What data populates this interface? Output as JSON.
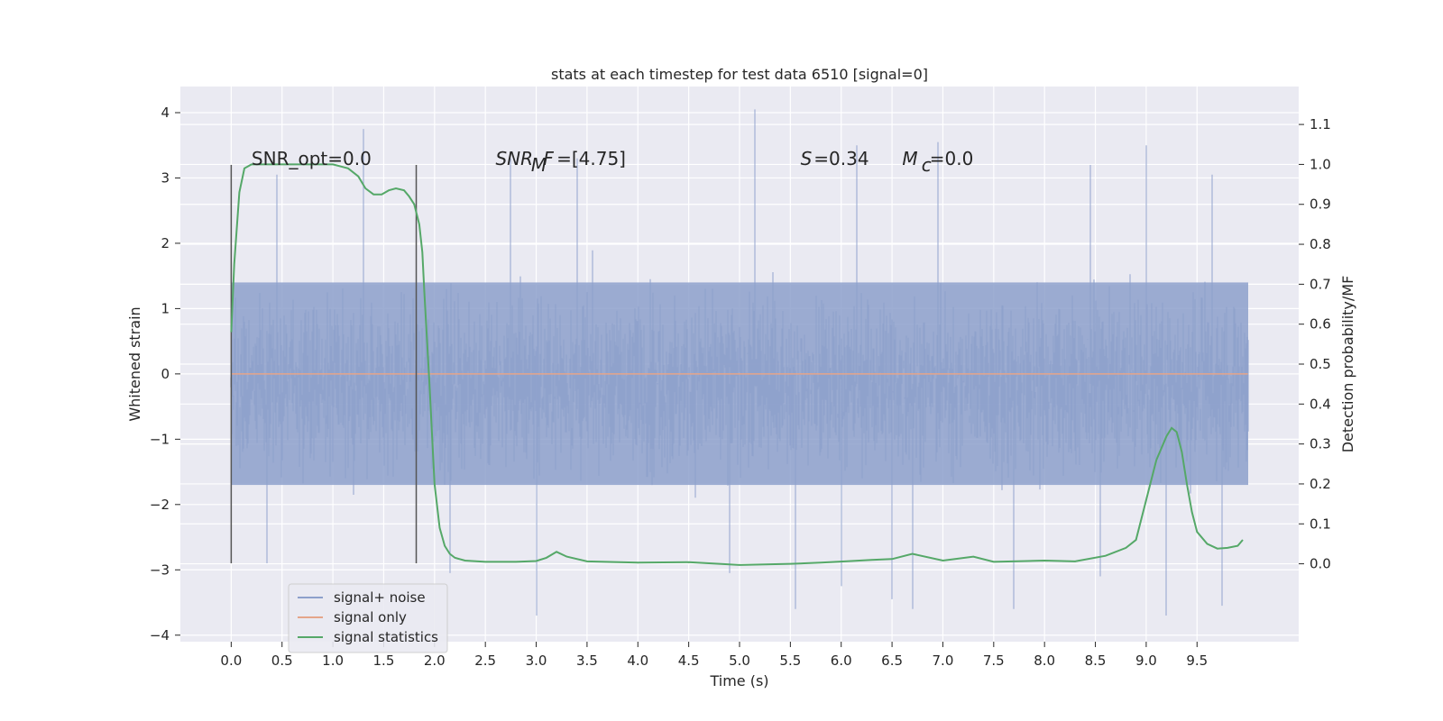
{
  "chart_data": {
    "type": "line",
    "title": "stats at each timestep for test data 6510 [signal=0]",
    "xlabel": "Time (s)",
    "ylabel": "Whitened strain",
    "y2label": "Detection probability/MF",
    "xlim": [
      -0.5,
      10.5
    ],
    "ylim": [
      -4.1,
      4.4
    ],
    "y2lim": [
      -0.195,
      1.195
    ],
    "x_ticks": [
      0.0,
      0.5,
      1.0,
      1.5,
      2.0,
      2.5,
      3.0,
      3.5,
      4.0,
      4.5,
      5.0,
      5.5,
      6.0,
      6.5,
      7.0,
      7.5,
      8.0,
      8.5,
      9.0,
      9.5
    ],
    "x_tick_labels": [
      "0.0",
      "0.5",
      "1.0",
      "1.5",
      "2.0",
      "2.5",
      "3.0",
      "3.5",
      "4.0",
      "4.5",
      "5.0",
      "5.5",
      "6.0",
      "6.5",
      "7.0",
      "7.5",
      "8.0",
      "8.5",
      "9.0",
      "9.5"
    ],
    "y_ticks": [
      4,
      3,
      2,
      1,
      0,
      -1,
      -2,
      -3,
      -4
    ],
    "y_tick_labels": [
      "4",
      "3",
      "2",
      "1",
      "0",
      "−1",
      "−2",
      "−3",
      "−4"
    ],
    "y2_ticks": [
      1.1,
      1.0,
      0.9,
      0.8,
      0.7,
      0.6,
      0.5,
      0.4,
      0.3,
      0.2,
      0.1,
      0.0
    ],
    "y2_tick_labels": [
      "1.1",
      "1.0",
      "0.9",
      "0.8",
      "0.7",
      "0.6",
      "0.5",
      "0.4",
      "0.3",
      "0.2",
      "0.1",
      "0.0"
    ],
    "grid": true,
    "legend_position": "bottom-left",
    "series": [
      {
        "name": "signal+ noise",
        "color": "#8da0cb",
        "axis": "left",
        "x_range": [
          0.0,
          10.0
        ],
        "envelope_typical": [
          -1.7,
          1.4
        ],
        "envelope_extreme": [
          -3.7,
          4.05
        ],
        "spikes": [
          {
            "x": 1.3,
            "y": 3.75
          },
          {
            "x": 5.15,
            "y": 4.05
          },
          {
            "x": 6.15,
            "y": 3.5
          },
          {
            "x": 6.95,
            "y": 3.55
          },
          {
            "x": 9.0,
            "y": 3.5
          },
          {
            "x": 2.75,
            "y": 3.3
          },
          {
            "x": 3.4,
            "y": 3.3
          },
          {
            "x": 8.45,
            "y": 3.2
          },
          {
            "x": 9.65,
            "y": 3.05
          },
          {
            "x": 0.45,
            "y": 3.05
          },
          {
            "x": 3.0,
            "y": -3.7
          },
          {
            "x": 5.55,
            "y": -3.6
          },
          {
            "x": 9.2,
            "y": -3.7
          },
          {
            "x": 6.7,
            "y": -3.6
          },
          {
            "x": 9.75,
            "y": -3.55
          },
          {
            "x": 7.7,
            "y": -3.6
          },
          {
            "x": 2.15,
            "y": -3.05
          },
          {
            "x": 6.0,
            "y": -3.25
          },
          {
            "x": 6.5,
            "y": -3.45
          },
          {
            "x": 0.35,
            "y": -2.9
          },
          {
            "x": 4.9,
            "y": -3.05
          },
          {
            "x": 8.55,
            "y": -3.1
          }
        ]
      },
      {
        "name": "signal only",
        "color": "#e5a58a",
        "axis": "left",
        "x": [
          0.0,
          10.0
        ],
        "y": [
          0.0,
          0.0
        ]
      },
      {
        "name": "signal statistics",
        "color": "#55a868",
        "axis": "right",
        "x": [
          0.0,
          0.03,
          0.08,
          0.13,
          0.2,
          0.3,
          0.5,
          0.7,
          1.0,
          1.15,
          1.25,
          1.32,
          1.4,
          1.48,
          1.55,
          1.62,
          1.7,
          1.75,
          1.8,
          1.85,
          1.88,
          1.9,
          1.95,
          2.0,
          2.05,
          2.1,
          2.15,
          2.2,
          2.3,
          2.5,
          2.8,
          3.0,
          3.1,
          3.2,
          3.3,
          3.5,
          4.0,
          4.5,
          5.0,
          5.5,
          5.8,
          6.1,
          6.3,
          6.5,
          6.7,
          7.0,
          7.3,
          7.5,
          8.0,
          8.3,
          8.6,
          8.8,
          8.9,
          9.0,
          9.1,
          9.2,
          9.25,
          9.3,
          9.35,
          9.4,
          9.45,
          9.5,
          9.6,
          9.7,
          9.8,
          9.9,
          9.95
        ],
        "y": [
          0.58,
          0.75,
          0.93,
          0.99,
          1.0,
          1.0,
          1.0,
          1.0,
          1.0,
          0.99,
          0.97,
          0.94,
          0.925,
          0.925,
          0.935,
          0.94,
          0.935,
          0.92,
          0.9,
          0.85,
          0.78,
          0.68,
          0.45,
          0.2,
          0.09,
          0.045,
          0.025,
          0.015,
          0.008,
          0.005,
          0.005,
          0.007,
          0.015,
          0.03,
          0.018,
          0.006,
          0.003,
          0.004,
          -0.003,
          0.0,
          0.003,
          0.007,
          0.01,
          0.012,
          0.025,
          0.008,
          0.018,
          0.005,
          0.008,
          0.006,
          0.02,
          0.04,
          0.06,
          0.16,
          0.26,
          0.32,
          0.34,
          0.33,
          0.28,
          0.2,
          0.13,
          0.08,
          0.05,
          0.038,
          0.04,
          0.045,
          0.06
        ]
      }
    ],
    "vertical_lines": [
      {
        "x": 0.0,
        "y_range": [
          -2.9,
          3.2
        ],
        "color": "#555555"
      },
      {
        "x": 1.82,
        "y_range": [
          -2.9,
          3.2
        ],
        "color": "#555555"
      }
    ],
    "annotations": [
      {
        "id": "snr-opt",
        "text": "SNR_opt=0.0",
        "x": 0.2,
        "y": 3.2
      },
      {
        "id": "snr-mf-sym",
        "text": "SNR",
        "x": 2.6,
        "y": 3.2
      },
      {
        "id": "snr-mf-sub",
        "text": "M",
        "x": 2.95,
        "y": 3.1
      },
      {
        "id": "snr-mf-f",
        "text": "F",
        "x": 3.07,
        "y": 3.2
      },
      {
        "id": "snr-mf-val",
        "text": "=[4.75]",
        "x": 3.2,
        "y": 3.2
      },
      {
        "id": "s-sym",
        "text": "S",
        "x": 5.6,
        "y": 3.2
      },
      {
        "id": "s-val",
        "text": "=0.34",
        "x": 5.73,
        "y": 3.2
      },
      {
        "id": "mc-sym",
        "text": "M",
        "x": 6.6,
        "y": 3.2
      },
      {
        "id": "mc-sub",
        "text": "c",
        "x": 6.79,
        "y": 3.1
      },
      {
        "id": "mc-val",
        "text": "=0.0",
        "x": 6.87,
        "y": 3.2
      }
    ]
  }
}
